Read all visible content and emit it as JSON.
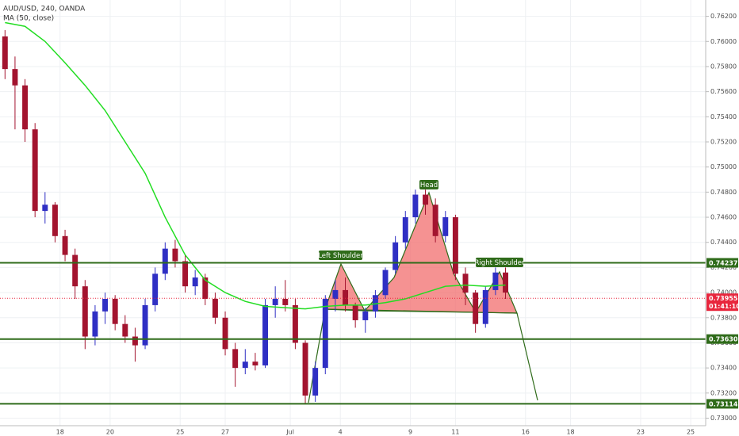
{
  "chart_data": {
    "type": "candlestick",
    "title": "AUD/USD, 240, OANDA",
    "x": [
      0,
      2,
      4,
      6,
      8,
      10,
      12,
      14,
      16,
      18,
      20,
      22,
      24,
      26,
      28,
      30,
      32,
      34,
      36,
      38,
      40,
      42,
      44,
      46,
      48,
      50,
      52,
      54,
      56,
      58,
      60,
      62,
      64,
      66,
      68,
      70,
      72,
      74,
      76,
      78,
      80,
      82,
      84,
      86,
      88,
      90,
      92,
      94,
      96,
      98,
      100
    ],
    "open": [
      0.7604,
      0.7578,
      0.7565,
      0.753,
      0.7465,
      0.747,
      0.7445,
      0.743,
      0.7405,
      0.7365,
      0.7385,
      0.7395,
      0.7375,
      0.7365,
      0.7358,
      0.739,
      0.7415,
      0.7435,
      0.7425,
      0.7405,
      0.7412,
      0.7395,
      0.738,
      0.7355,
      0.734,
      0.7345,
      0.7342,
      0.739,
      0.7395,
      0.739,
      0.736,
      0.7318,
      0.734,
      0.7395,
      0.7402,
      0.739,
      0.7378,
      0.7385,
      0.7398,
      0.7418,
      0.744,
      0.746,
      0.7478,
      0.747,
      0.7445,
      0.746,
      0.7415,
      0.74,
      0.7375,
      0.7402,
      0.7416
    ],
    "high": [
      0.7609,
      0.7588,
      0.757,
      0.7535,
      0.748,
      0.7472,
      0.745,
      0.7435,
      0.741,
      0.739,
      0.74,
      0.7398,
      0.7382,
      0.7372,
      0.7395,
      0.742,
      0.744,
      0.7442,
      0.743,
      0.7418,
      0.7415,
      0.74,
      0.7385,
      0.736,
      0.7355,
      0.7352,
      0.7395,
      0.7405,
      0.741,
      0.7395,
      0.7362,
      0.7345,
      0.7398,
      0.741,
      0.7412,
      0.7392,
      0.7388,
      0.7402,
      0.742,
      0.7445,
      0.7465,
      0.7482,
      0.7482,
      0.7475,
      0.7465,
      0.7462,
      0.742,
      0.7402,
      0.7405,
      0.742,
      0.742
    ],
    "low": [
      0.757,
      0.753,
      0.752,
      0.746,
      0.7455,
      0.744,
      0.7425,
      0.7395,
      0.7355,
      0.7358,
      0.7375,
      0.737,
      0.736,
      0.7345,
      0.7355,
      0.7385,
      0.741,
      0.742,
      0.74,
      0.7398,
      0.739,
      0.7375,
      0.735,
      0.7325,
      0.7335,
      0.7338,
      0.734,
      0.738,
      0.7385,
      0.7355,
      0.7311,
      0.7313,
      0.7335,
      0.7385,
      0.7385,
      0.7372,
      0.7368,
      0.738,
      0.7395,
      0.7415,
      0.7435,
      0.7455,
      0.7462,
      0.744,
      0.744,
      0.741,
      0.739,
      0.7368,
      0.7372,
      0.7398,
      0.7395
    ],
    "close": [
      0.7578,
      0.7565,
      0.753,
      0.7465,
      0.747,
      0.7445,
      0.743,
      0.7405,
      0.7365,
      0.7385,
      0.7395,
      0.7375,
      0.7365,
      0.7358,
      0.739,
      0.7415,
      0.7435,
      0.7425,
      0.7405,
      0.7412,
      0.7395,
      0.738,
      0.7355,
      0.734,
      0.7345,
      0.7342,
      0.739,
      0.7395,
      0.739,
      0.736,
      0.7318,
      0.734,
      0.7395,
      0.7402,
      0.739,
      0.7378,
      0.7385,
      0.7398,
      0.7418,
      0.744,
      0.746,
      0.7478,
      0.747,
      0.7445,
      0.746,
      0.7415,
      0.74,
      0.7375,
      0.7402,
      0.7416,
      0.74
    ],
    "up_color": "#2f2fc4",
    "down_color": "#a3142f",
    "ma": {
      "name": "MA (50, close)",
      "color": "#22dd22",
      "x": [
        0,
        4,
        8,
        12,
        16,
        20,
        24,
        28,
        32,
        36,
        40,
        44,
        48,
        52,
        56,
        60,
        64,
        68,
        72,
        76,
        80,
        84,
        88,
        92,
        96,
        100
      ],
      "values": [
        0.7615,
        0.7612,
        0.76,
        0.7583,
        0.7565,
        0.7545,
        0.752,
        0.7495,
        0.746,
        0.743,
        0.741,
        0.74,
        0.7393,
        0.7389,
        0.7388,
        0.7387,
        0.7389,
        0.739,
        0.739,
        0.7392,
        0.7395,
        0.74,
        0.7405,
        0.7406,
        0.7405,
        0.7406
      ]
    },
    "levels": [
      0.74237,
      {
        "value": 0.7363,
        "label": "0.73630"
      },
      0.73114
    ],
    "level_color": "#2f6b1a",
    "last_price": 0.73955,
    "last_color": "#e8263d",
    "countdown": "01:41:10",
    "annotations": [
      "Left Shoulder",
      "Head",
      "Right Shoulder"
    ],
    "xlim": [
      -1,
      140
    ],
    "xticks": [
      {
        "value": 11,
        "label": "18"
      },
      {
        "value": 21,
        "label": "20"
      },
      {
        "value": 35,
        "label": "25"
      },
      {
        "value": 44,
        "label": "27"
      },
      {
        "value": 57,
        "label": "Jul"
      },
      {
        "value": 67,
        "label": "4"
      },
      {
        "value": 81,
        "label": "9"
      },
      {
        "value": 90,
        "label": "11"
      },
      {
        "value": 104,
        "label": "16"
      },
      {
        "value": 113,
        "label": "18"
      },
      {
        "value": 127,
        "label": "23"
      },
      {
        "value": 137,
        "label": "25"
      }
    ],
    "ylim": [
      0.7294,
      0.7633
    ],
    "yticks": [
      {
        "value": 0.73,
        "label": "0.73000"
      },
      {
        "value": 0.732,
        "label": "0.73200"
      },
      {
        "value": 0.734,
        "label": "0.73400"
      },
      {
        "value": 0.736,
        "label": "0.73600"
      },
      {
        "value": 0.738,
        "label": "0.73800"
      },
      {
        "value": 0.74,
        "label": "0.74000"
      },
      {
        "value": 0.742,
        "label": "0.74200"
      },
      {
        "value": 0.744,
        "label": "0.74400"
      },
      {
        "value": 0.746,
        "label": "0.74600"
      },
      {
        "value": 0.748,
        "label": "0.74800"
      },
      {
        "value": 0.75,
        "label": "0.75000"
      },
      {
        "value": 0.752,
        "label": "0.75200"
      },
      {
        "value": 0.754,
        "label": "0.75400"
      },
      {
        "value": 0.756,
        "label": "0.75600"
      },
      {
        "value": 0.758,
        "label": "0.75800"
      },
      {
        "value": 0.76,
        "label": "0.76000"
      },
      {
        "value": 0.762,
        "label": "0.76200"
      }
    ],
    "grid": true
  }
}
